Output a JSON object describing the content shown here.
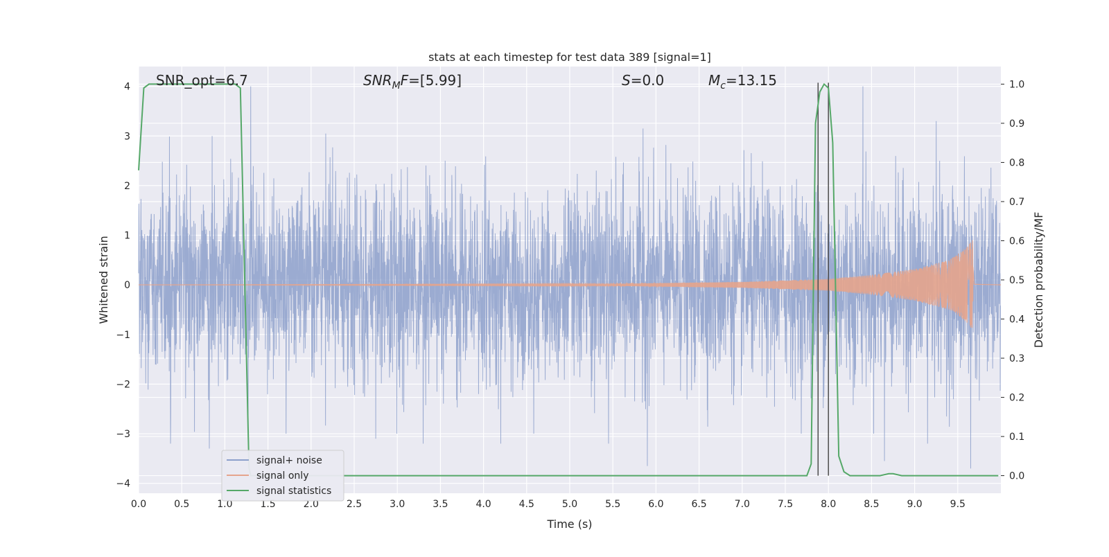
{
  "chart_data": {
    "type": "line",
    "title": "stats at each timestep for test data 389 [signal=1]",
    "xlabel": "Time (s)",
    "ylabel": "Whitened strain",
    "ylabel_right": "Detection probability/MF",
    "xlim": [
      0,
      10
    ],
    "ylim": [
      -4.2,
      4.4
    ],
    "ylim_right": [
      -0.045,
      1.045
    ],
    "xticks": [
      0.0,
      0.5,
      1.0,
      1.5,
      2.0,
      2.5,
      3.0,
      3.5,
      4.0,
      4.5,
      5.0,
      5.5,
      6.0,
      6.5,
      7.0,
      7.5,
      8.0,
      8.5,
      9.0,
      9.5
    ],
    "xtick_labels": [
      "0.0",
      "0.5",
      "1.0",
      "1.5",
      "2.0",
      "2.5",
      "3.0",
      "3.5",
      "4.0",
      "4.5",
      "5.0",
      "5.5",
      "6.0",
      "6.5",
      "7.0",
      "7.5",
      "8.0",
      "8.5",
      "9.0",
      "9.5"
    ],
    "yticks": [
      -4,
      -3,
      -2,
      -1,
      0,
      1,
      2,
      3,
      4
    ],
    "ytick_labels": [
      "−4",
      "−3",
      "−2",
      "−1",
      "0",
      "1",
      "2",
      "3",
      "4"
    ],
    "yticks_right": [
      0.0,
      0.1,
      0.2,
      0.3,
      0.4,
      0.5,
      0.6,
      0.7,
      0.8,
      0.9,
      1.0
    ],
    "ytick_labels_right": [
      "0.0",
      "0.1",
      "0.2",
      "0.3",
      "0.4",
      "0.5",
      "0.6",
      "0.7",
      "0.8",
      "0.9",
      "1.0"
    ],
    "grid": true,
    "legend_position": "lower-left",
    "annotations": {
      "snr_opt": "SNR_opt=6.7",
      "snr_mf": "SNRMF=[5.99]",
      "s": "S=0.0",
      "mc": "Mc=13.15"
    },
    "vertical_markers": [
      7.88,
      8.0
    ],
    "series": [
      {
        "name": "signal+ noise",
        "color": "#8da0cb",
        "axis": "left",
        "description_values": "white gaussian noise, sigma approx 1, envelope peaks near +/-3",
        "sample_peaks": [
          [
            0.37,
            -3.2
          ],
          [
            0.82,
            -3.3
          ],
          [
            1.3,
            4.0
          ],
          [
            2.17,
            3.05
          ],
          [
            2.75,
            -3.1
          ],
          [
            3.3,
            -3.2
          ],
          [
            4.2,
            -3.2
          ],
          [
            5.45,
            3.6
          ],
          [
            5.85,
            3.15
          ],
          [
            5.45,
            -3.2
          ],
          [
            5.9,
            -3.65
          ],
          [
            8.4,
            4.0
          ],
          [
            8.65,
            -3.55
          ],
          [
            9.15,
            -3.2
          ],
          [
            9.25,
            3.3
          ],
          [
            9.65,
            -3.7
          ]
        ]
      },
      {
        "name": "signal only",
        "color": "#e5a48c",
        "axis": "left",
        "description_values": "chirp starting near 5.5 s, amplitude growing to ~0.9 at merger 9.67 s",
        "amplitude_points": [
          [
            0,
            0.0
          ],
          [
            5.5,
            0.02
          ],
          [
            7.0,
            0.06
          ],
          [
            8.0,
            0.12
          ],
          [
            8.5,
            0.2
          ],
          [
            9.0,
            0.32
          ],
          [
            9.4,
            0.5
          ],
          [
            9.6,
            0.75
          ],
          [
            9.67,
            0.9
          ],
          [
            9.69,
            0.02
          ],
          [
            10.0,
            0.0
          ]
        ]
      },
      {
        "name": "signal statistics",
        "color": "#55a868",
        "axis": "right",
        "x": [
          0.0,
          0.06,
          0.12,
          1.05,
          1.12,
          1.18,
          1.28,
          1.3,
          7.75,
          7.8,
          7.85,
          7.9,
          7.95,
          8.0,
          8.05,
          8.12,
          8.18,
          8.25,
          8.6,
          8.7,
          8.75,
          8.85,
          9.0,
          9.97
        ],
        "values": [
          0.78,
          0.99,
          1.0,
          1.0,
          1.0,
          0.99,
          0.02,
          0.0,
          0.0,
          0.03,
          0.9,
          0.98,
          1.0,
          0.99,
          0.85,
          0.05,
          0.01,
          0.0,
          0.0,
          0.005,
          0.005,
          0.0,
          0.0,
          0.0
        ]
      }
    ]
  }
}
